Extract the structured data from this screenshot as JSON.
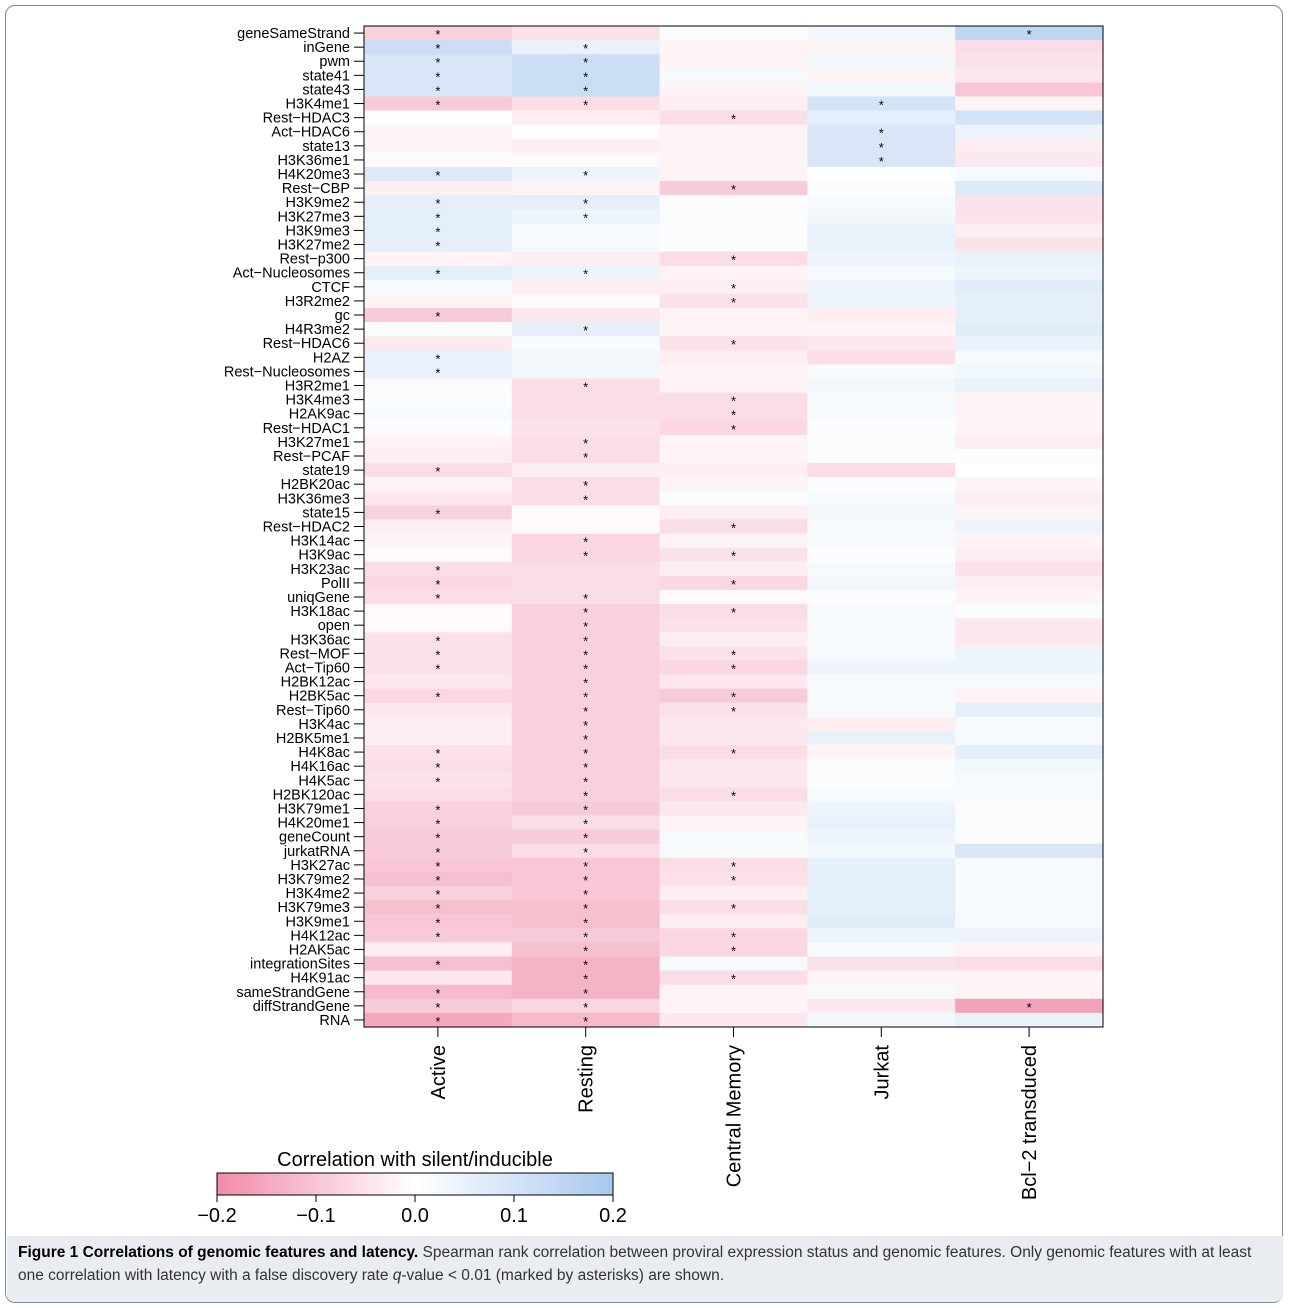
{
  "chart_data": {
    "type": "heatmap",
    "rows": [
      "geneSameStrand",
      "inGene",
      "pwm",
      "state41",
      "state43",
      "H3K4me1",
      "Rest−HDAC3",
      "Act−HDAC6",
      "state13",
      "H3K36me1",
      "H4K20me3",
      "Rest−CBP",
      "H3K9me2",
      "H3K27me3",
      "H3K9me3",
      "H3K27me2",
      "Rest−p300",
      "Act−Nucleosomes",
      "CTCF",
      "H3R2me2",
      "gc",
      "H4R3me2",
      "Rest−HDAC6",
      "H2AZ",
      "Rest−Nucleosomes",
      "H3R2me1",
      "H3K4me3",
      "H2AK9ac",
      "Rest−HDAC1",
      "H3K27me1",
      "Rest−PCAF",
      "state19",
      "H2BK20ac",
      "H3K36me3",
      "state15",
      "Rest−HDAC2",
      "H3K14ac",
      "H3K9ac",
      "H3K23ac",
      "PolII",
      "uniqGene",
      "H3K18ac",
      "open",
      "H3K36ac",
      "Rest−MOF",
      "Act−Tip60",
      "H2BK12ac",
      "H2BK5ac",
      "Rest−Tip60",
      "H3K4ac",
      "H2BK5me1",
      "H4K8ac",
      "H4K16ac",
      "H4K5ac",
      "H2BK120ac",
      "H3K79me1",
      "H4K20me1",
      "geneCount",
      "jurkatRNA",
      "H3K27ac",
      "H3K79me2",
      "H3K4me2",
      "H3K79me3",
      "H3K9me1",
      "H4K12ac",
      "H2AK5ac",
      "integrationSites",
      "H4K91ac",
      "sameStrandGene",
      "diffStrandGene",
      "RNA"
    ],
    "columns": [
      "Active",
      "Resting",
      "Central Memory",
      "Jurkat",
      "Bcl−2 transduced"
    ],
    "values": [
      [
        -0.08,
        -0.05,
        0.01,
        0.03,
        0.15
      ],
      [
        0.12,
        0.05,
        -0.02,
        -0.02,
        -0.06
      ],
      [
        0.09,
        0.12,
        -0.02,
        0.03,
        -0.05
      ],
      [
        0.09,
        0.12,
        0.02,
        -0.02,
        -0.04
      ],
      [
        0.09,
        0.12,
        -0.02,
        0.03,
        -0.1
      ],
      [
        -0.09,
        -0.06,
        -0.03,
        0.1,
        -0.02
      ],
      [
        0.0,
        -0.03,
        -0.06,
        0.06,
        0.1
      ],
      [
        -0.02,
        0.0,
        -0.02,
        0.09,
        0.04
      ],
      [
        -0.02,
        -0.03,
        -0.02,
        0.09,
        -0.03
      ],
      [
        -0.01,
        -0.01,
        -0.02,
        0.09,
        -0.04
      ],
      [
        0.08,
        0.04,
        -0.02,
        0.0,
        0.02
      ],
      [
        -0.03,
        -0.02,
        -0.09,
        0.01,
        0.08
      ],
      [
        0.06,
        0.06,
        0.01,
        0.02,
        -0.05
      ],
      [
        0.06,
        0.04,
        0.01,
        0.03,
        -0.05
      ],
      [
        0.06,
        0.02,
        0.01,
        0.05,
        -0.03
      ],
      [
        0.06,
        0.02,
        0.01,
        0.05,
        -0.05
      ],
      [
        -0.02,
        -0.03,
        -0.06,
        0.04,
        0.05
      ],
      [
        0.06,
        0.04,
        -0.02,
        0.02,
        0.04
      ],
      [
        0.02,
        -0.03,
        -0.03,
        0.04,
        0.07
      ],
      [
        -0.02,
        -0.01,
        -0.05,
        0.04,
        0.06
      ],
      [
        -0.09,
        -0.04,
        -0.02,
        -0.03,
        0.06
      ],
      [
        0.01,
        0.06,
        -0.02,
        -0.02,
        0.07
      ],
      [
        -0.04,
        0.02,
        -0.05,
        -0.04,
        0.05
      ],
      [
        0.05,
        0.03,
        -0.03,
        -0.06,
        0.02
      ],
      [
        0.05,
        0.03,
        -0.02,
        0.02,
        0.03
      ],
      [
        -0.01,
        -0.06,
        -0.02,
        0.03,
        0.05
      ],
      [
        0.01,
        -0.06,
        -0.06,
        0.02,
        -0.02
      ],
      [
        0.02,
        -0.06,
        -0.06,
        0.02,
        -0.02
      ],
      [
        0.01,
        -0.05,
        -0.07,
        0.01,
        -0.02
      ],
      [
        -0.02,
        -0.06,
        -0.02,
        0.01,
        -0.03
      ],
      [
        -0.03,
        -0.06,
        -0.02,
        0.01,
        0.01
      ],
      [
        -0.06,
        -0.03,
        -0.03,
        -0.06,
        0.0
      ],
      [
        -0.02,
        -0.06,
        -0.02,
        0.01,
        -0.02
      ],
      [
        -0.04,
        -0.06,
        0.01,
        0.02,
        -0.03
      ],
      [
        -0.08,
        -0.01,
        -0.03,
        0.03,
        -0.02
      ],
      [
        -0.03,
        -0.01,
        -0.06,
        0.02,
        0.04
      ],
      [
        -0.02,
        -0.07,
        -0.02,
        0.02,
        -0.02
      ],
      [
        -0.01,
        -0.07,
        -0.05,
        0.01,
        -0.03
      ],
      [
        -0.06,
        -0.06,
        -0.03,
        0.02,
        -0.05
      ],
      [
        -0.07,
        -0.06,
        -0.07,
        0.03,
        -0.03
      ],
      [
        -0.06,
        -0.06,
        -0.01,
        0.01,
        -0.02
      ],
      [
        -0.01,
        -0.08,
        -0.06,
        0.02,
        0.01
      ],
      [
        -0.01,
        -0.08,
        -0.05,
        0.02,
        -0.04
      ],
      [
        -0.05,
        -0.08,
        -0.03,
        0.02,
        -0.04
      ],
      [
        -0.05,
        -0.08,
        -0.05,
        0.02,
        0.04
      ],
      [
        -0.05,
        -0.08,
        -0.07,
        0.04,
        0.04
      ],
      [
        -0.04,
        -0.08,
        -0.04,
        0.02,
        0.02
      ],
      [
        -0.07,
        -0.08,
        -0.09,
        0.02,
        -0.02
      ],
      [
        -0.04,
        -0.08,
        -0.05,
        0.02,
        0.06
      ],
      [
        -0.03,
        -0.08,
        -0.04,
        -0.03,
        0.02
      ],
      [
        -0.03,
        -0.08,
        -0.04,
        0.05,
        0.02
      ],
      [
        -0.05,
        -0.08,
        -0.06,
        -0.02,
        0.06
      ],
      [
        -0.06,
        -0.08,
        -0.04,
        0.01,
        0.03
      ],
      [
        -0.05,
        -0.08,
        -0.04,
        0.01,
        0.02
      ],
      [
        -0.06,
        -0.08,
        -0.06,
        0.02,
        0.02
      ],
      [
        -0.08,
        -0.09,
        -0.04,
        0.04,
        0.01
      ],
      [
        -0.08,
        -0.06,
        -0.02,
        0.05,
        0.01
      ],
      [
        -0.09,
        -0.09,
        0.02,
        0.04,
        0.01
      ],
      [
        -0.09,
        -0.06,
        0.02,
        0.03,
        0.09
      ],
      [
        -0.1,
        -0.1,
        -0.06,
        0.06,
        0.02
      ],
      [
        -0.11,
        -0.1,
        -0.05,
        0.06,
        0.02
      ],
      [
        -0.08,
        -0.1,
        -0.03,
        0.06,
        0.02
      ],
      [
        -0.11,
        -0.11,
        -0.06,
        0.06,
        0.02
      ],
      [
        -0.1,
        -0.11,
        -0.03,
        0.07,
        0.02
      ],
      [
        -0.09,
        -0.09,
        -0.07,
        0.04,
        0.04
      ],
      [
        -0.03,
        -0.11,
        -0.07,
        0.02,
        -0.02
      ],
      [
        -0.11,
        -0.13,
        0.02,
        -0.05,
        -0.06
      ],
      [
        -0.04,
        -0.13,
        -0.06,
        -0.02,
        -0.02
      ],
      [
        -0.12,
        -0.13,
        -0.02,
        0.02,
        -0.02
      ],
      [
        -0.09,
        -0.07,
        -0.02,
        -0.04,
        -0.16
      ],
      [
        -0.15,
        -0.12,
        -0.04,
        0.03,
        0.05
      ]
    ],
    "significant": [
      [
        1,
        0,
        0,
        0,
        1
      ],
      [
        1,
        1,
        0,
        0,
        0
      ],
      [
        1,
        1,
        0,
        0,
        0
      ],
      [
        1,
        1,
        0,
        0,
        0
      ],
      [
        1,
        1,
        0,
        0,
        0
      ],
      [
        1,
        1,
        0,
        1,
        0
      ],
      [
        0,
        0,
        1,
        0,
        0
      ],
      [
        0,
        0,
        0,
        1,
        0
      ],
      [
        0,
        0,
        0,
        1,
        0
      ],
      [
        0,
        0,
        0,
        1,
        0
      ],
      [
        1,
        1,
        0,
        0,
        0
      ],
      [
        0,
        0,
        1,
        0,
        0
      ],
      [
        1,
        1,
        0,
        0,
        0
      ],
      [
        1,
        1,
        0,
        0,
        0
      ],
      [
        1,
        0,
        0,
        0,
        0
      ],
      [
        1,
        0,
        0,
        0,
        0
      ],
      [
        0,
        0,
        1,
        0,
        0
      ],
      [
        1,
        1,
        0,
        0,
        0
      ],
      [
        0,
        0,
        1,
        0,
        0
      ],
      [
        0,
        0,
        1,
        0,
        0
      ],
      [
        1,
        0,
        0,
        0,
        0
      ],
      [
        0,
        1,
        0,
        0,
        0
      ],
      [
        0,
        0,
        1,
        0,
        0
      ],
      [
        1,
        0,
        0,
        0,
        0
      ],
      [
        1,
        0,
        0,
        0,
        0
      ],
      [
        0,
        1,
        0,
        0,
        0
      ],
      [
        0,
        0,
        1,
        0,
        0
      ],
      [
        0,
        0,
        1,
        0,
        0
      ],
      [
        0,
        0,
        1,
        0,
        0
      ],
      [
        0,
        1,
        0,
        0,
        0
      ],
      [
        0,
        1,
        0,
        0,
        0
      ],
      [
        1,
        0,
        0,
        0,
        0
      ],
      [
        0,
        1,
        0,
        0,
        0
      ],
      [
        0,
        1,
        0,
        0,
        0
      ],
      [
        1,
        0,
        0,
        0,
        0
      ],
      [
        0,
        0,
        1,
        0,
        0
      ],
      [
        0,
        1,
        0,
        0,
        0
      ],
      [
        0,
        1,
        1,
        0,
        0
      ],
      [
        1,
        0,
        0,
        0,
        0
      ],
      [
        1,
        0,
        1,
        0,
        0
      ],
      [
        1,
        1,
        0,
        0,
        0
      ],
      [
        0,
        1,
        1,
        0,
        0
      ],
      [
        0,
        1,
        0,
        0,
        0
      ],
      [
        1,
        1,
        0,
        0,
        0
      ],
      [
        1,
        1,
        1,
        0,
        0
      ],
      [
        1,
        1,
        1,
        0,
        0
      ],
      [
        0,
        1,
        0,
        0,
        0
      ],
      [
        1,
        1,
        1,
        0,
        0
      ],
      [
        0,
        1,
        1,
        0,
        0
      ],
      [
        0,
        1,
        0,
        0,
        0
      ],
      [
        0,
        1,
        0,
        0,
        0
      ],
      [
        1,
        1,
        1,
        0,
        0
      ],
      [
        1,
        1,
        0,
        0,
        0
      ],
      [
        1,
        1,
        0,
        0,
        0
      ],
      [
        0,
        1,
        1,
        0,
        0
      ],
      [
        1,
        1,
        0,
        0,
        0
      ],
      [
        1,
        1,
        0,
        0,
        0
      ],
      [
        1,
        1,
        0,
        0,
        0
      ],
      [
        1,
        1,
        0,
        0,
        0
      ],
      [
        1,
        1,
        1,
        0,
        0
      ],
      [
        1,
        1,
        1,
        0,
        0
      ],
      [
        1,
        1,
        0,
        0,
        0
      ],
      [
        1,
        1,
        1,
        0,
        0
      ],
      [
        1,
        1,
        0,
        0,
        0
      ],
      [
        1,
        1,
        1,
        0,
        0
      ],
      [
        0,
        1,
        1,
        0,
        0
      ],
      [
        1,
        1,
        0,
        0,
        0
      ],
      [
        0,
        1,
        1,
        0,
        0
      ],
      [
        1,
        1,
        0,
        0,
        0
      ],
      [
        1,
        1,
        0,
        0,
        1
      ],
      [
        1,
        1,
        0,
        0,
        0
      ]
    ],
    "marker": "*",
    "colorbar": {
      "title": "Correlation with silent/inducible",
      "range": [
        -0.2,
        0.2
      ],
      "ticks": [
        "−0.2",
        "−0.1",
        "0.0",
        "0.1",
        "0.2"
      ],
      "low_color": "#f08ca8",
      "mid_color": "#ffffff",
      "high_color": "#a8c8ee"
    }
  },
  "caption": {
    "title": "Figure 1 Correlations of genomic features and latency.",
    "text_before_q": " Spearman rank correlation between proviral expression status and genomic features. Only genomic features with at least one correlation with latency with a false discovery rate ",
    "q": "q",
    "text_after_q": "-value < 0.01 (marked by asterisks) are shown."
  }
}
